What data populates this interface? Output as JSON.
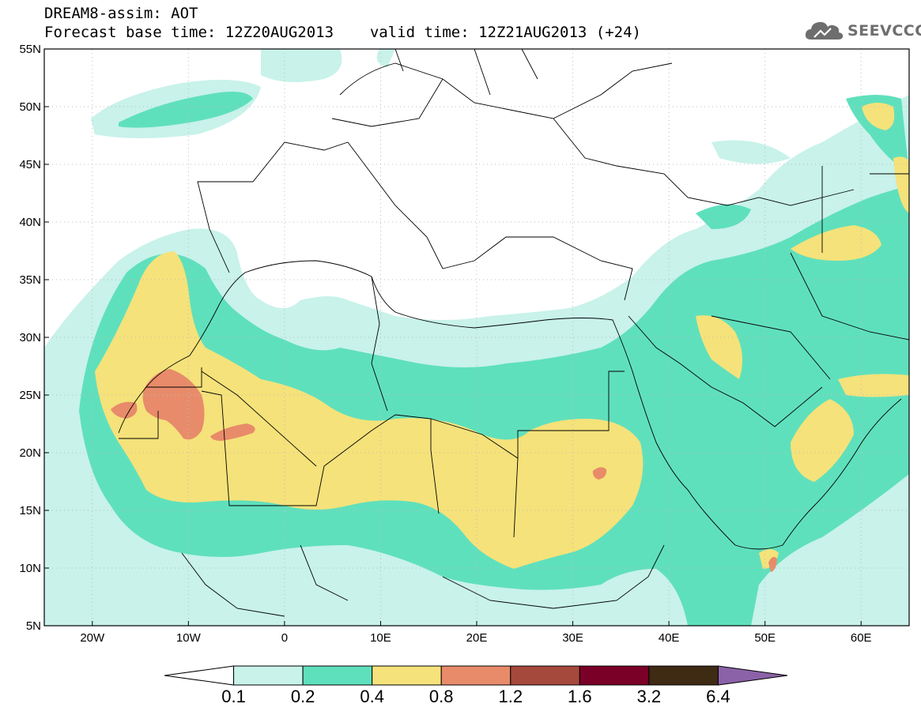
{
  "header": {
    "title": "DREAM8-assim: AOT",
    "base_time_label": "Forecast base time: 12Z20AUG2013",
    "valid_time_label": "valid time: 12Z21AUG2013 (+24)"
  },
  "logo": {
    "text": "SEEVCCC",
    "icon": "cloud-icon",
    "color": "#6e6e6e"
  },
  "map": {
    "lon_range": [
      -25,
      65
    ],
    "lat_range": [
      5,
      55
    ],
    "lon_ticks": [
      {
        "value": -20,
        "label": "20W"
      },
      {
        "value": -10,
        "label": "10W"
      },
      {
        "value": 0,
        "label": "0"
      },
      {
        "value": 10,
        "label": "10E"
      },
      {
        "value": 20,
        "label": "20E"
      },
      {
        "value": 30,
        "label": "30E"
      },
      {
        "value": 40,
        "label": "40E"
      },
      {
        "value": 50,
        "label": "50E"
      },
      {
        "value": 60,
        "label": "60E"
      }
    ],
    "lat_ticks": [
      {
        "value": 5,
        "label": "5N"
      },
      {
        "value": 10,
        "label": "10N"
      },
      {
        "value": 15,
        "label": "15N"
      },
      {
        "value": 20,
        "label": "20N"
      },
      {
        "value": 25,
        "label": "25N"
      },
      {
        "value": 30,
        "label": "30N"
      },
      {
        "value": 35,
        "label": "35N"
      },
      {
        "value": 40,
        "label": "40N"
      },
      {
        "value": 45,
        "label": "45N"
      },
      {
        "value": 50,
        "label": "50N"
      },
      {
        "value": 55,
        "label": "55N"
      }
    ],
    "grid": true
  },
  "colorbar": {
    "levels": [
      "0.1",
      "0.2",
      "0.4",
      "0.8",
      "1.2",
      "1.6",
      "3.2",
      "6.4"
    ],
    "colors": [
      "#ffffff",
      "#c8f2ea",
      "#5fe0bc",
      "#f5e27a",
      "#e88b6a",
      "#a5493c",
      "#7a0028",
      "#3f2a14",
      "#8b62a8"
    ]
  }
}
